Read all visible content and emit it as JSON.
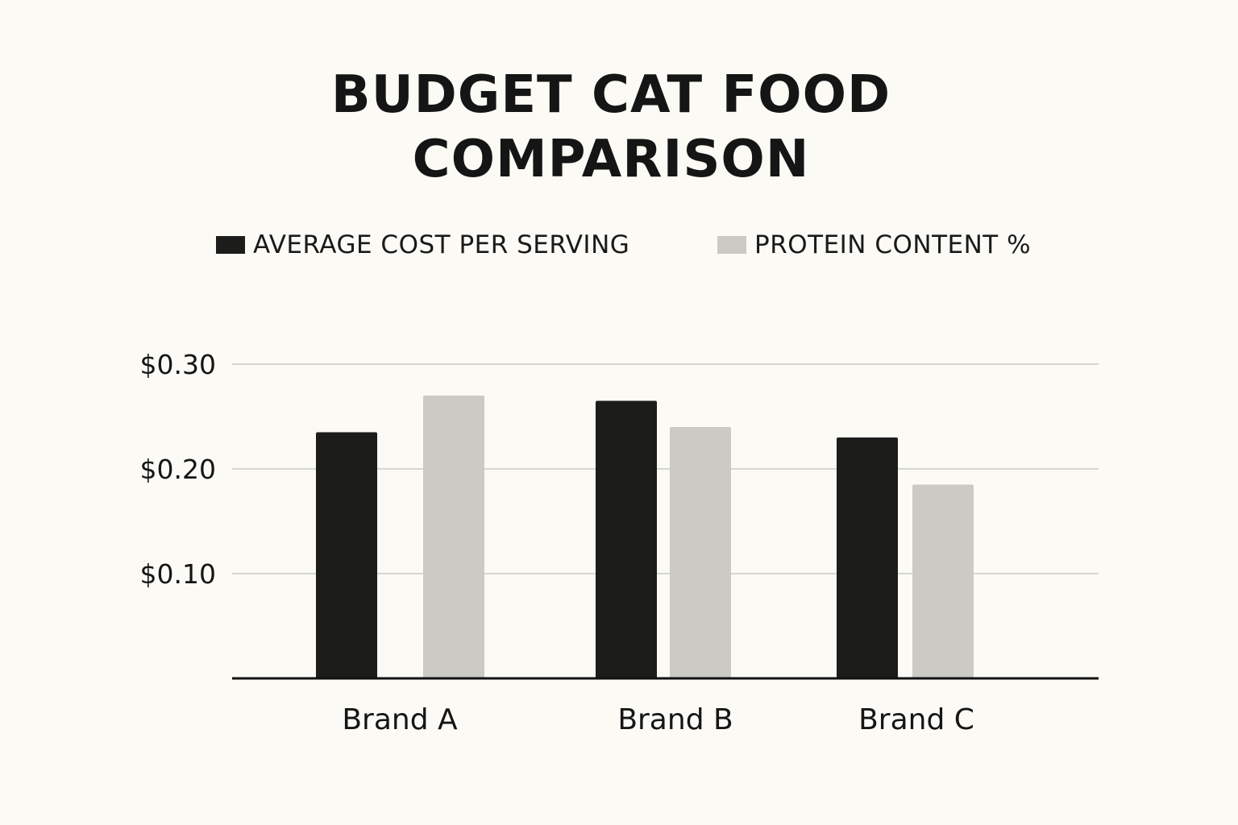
{
  "title": {
    "line1": "BUDGET CAT FOOD",
    "line2": "COMPARISON"
  },
  "colors": {
    "background": "#fbfaf5",
    "series_cost": "#1c1c1a",
    "series_protein": "#cbcac5",
    "gridline": "#d6d6d2",
    "baseline": "#111111"
  },
  "chart_data": {
    "type": "bar",
    "categories": [
      "Brand A",
      "Brand B",
      "Brand C"
    ],
    "series": [
      {
        "name": "AVERAGE COST PER SERVING",
        "values": [
          0.235,
          0.265,
          0.23
        ],
        "color": "#1c1c1a"
      },
      {
        "name": "PROTEIN CONTENT %",
        "values": [
          0.27,
          0.24,
          0.185
        ],
        "color": "#cbcac5"
      }
    ],
    "yticks": [
      {
        "value": 0.1,
        "label": "$0.10"
      },
      {
        "value": 0.2,
        "label": "$0.20"
      },
      {
        "value": 0.3,
        "label": "$0.30"
      }
    ],
    "ylim": [
      0,
      0.3
    ],
    "grid": true,
    "legend_position": "top"
  }
}
